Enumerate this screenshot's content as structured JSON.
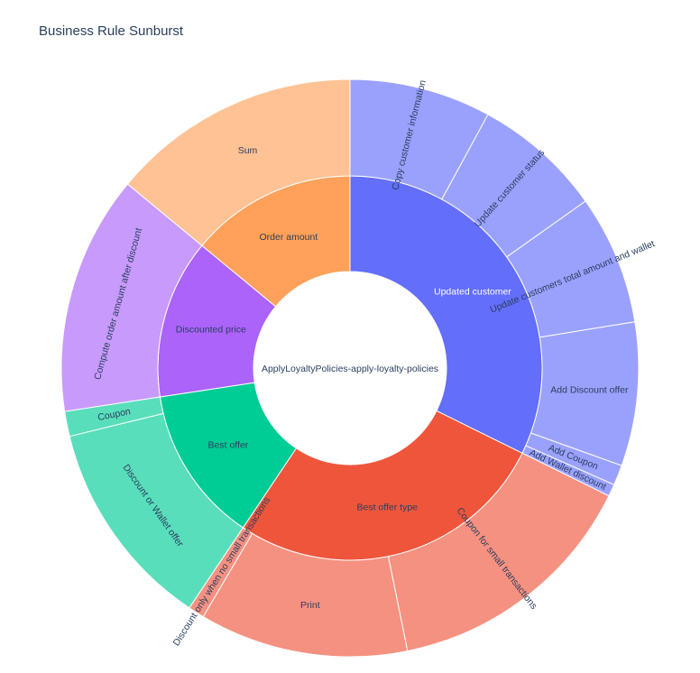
{
  "chart_data": {
    "type": "sunburst",
    "title": "Business Rule Sunburst",
    "root": {
      "label": "ApplyLoyaltyPolicies-apply-loyalty-policies",
      "children": [
        {
          "label": "Updated customer",
          "value": 32.3,
          "color": "#636efa",
          "text_color": "#ffffff",
          "children": [
            {
              "label": "Copy customer information",
              "value": 7.0
            },
            {
              "label": "Update customer status",
              "value": 6.4
            },
            {
              "label": "Update customers total amount and wallet",
              "value": 6.4
            },
            {
              "label": "Add Discount offer",
              "value": 7.1
            },
            {
              "label": "Add Coupon",
              "value": 1.0
            },
            {
              "label": "Add Wallet discount",
              "value": 0.6
            }
          ]
        },
        {
          "label": "Best offer type",
          "value": 27.1,
          "color": "#ef553b",
          "text_color": "#2a3f5f",
          "children": [
            {
              "label": "Coupon for small transactions",
              "value": 14.4
            },
            {
              "label": "Print",
              "value": 11.6
            },
            {
              "label": "Discount only when no small transactions",
              "value": 0.9
            }
          ]
        },
        {
          "label": "Best offer",
          "value": 13.2,
          "color": "#00cc96",
          "text_color": "#2a3f5f",
          "children": [
            {
              "label": "Discount or Wallet offer",
              "value": 11.8
            },
            {
              "label": "Coupon",
              "value": 1.4
            }
          ]
        },
        {
          "label": "Discounted price",
          "value": 13.4,
          "color": "#ab63fa",
          "text_color": "#2a3f5f",
          "children": [
            {
              "label": "Compute order amount after discount",
              "value": 13.4
            }
          ]
        },
        {
          "label": "Order amount",
          "value": 14.0,
          "color": "#ffa15a",
          "text_color": "#2a3f5f",
          "children": [
            {
              "label": "Sum",
              "value": 14.0
            }
          ]
        }
      ]
    },
    "start_angle_deg": 90,
    "direction": "clockwise",
    "legend": "none"
  }
}
